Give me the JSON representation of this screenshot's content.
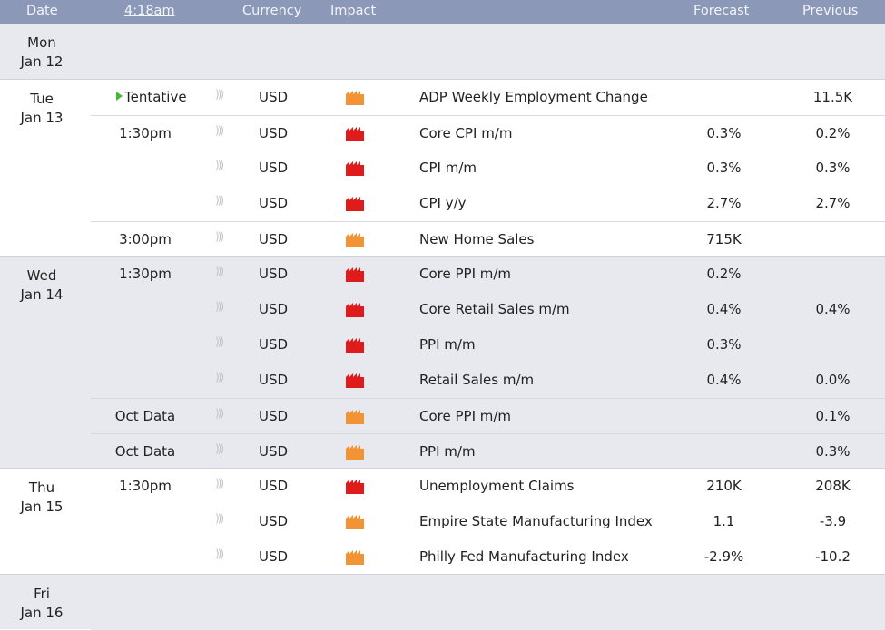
{
  "header": {
    "date": "Date",
    "time": "4:18am",
    "currency": "Currency",
    "impact": "Impact",
    "forecast": "Forecast",
    "previous": "Previous"
  },
  "colors": {
    "high_impact": "#e01b1b",
    "medium_impact": "#f29436",
    "header_bg": "#8c98b8",
    "tentative_icon": "#49b63b"
  },
  "days": [
    {
      "day": "Mon",
      "date": "Jan 12",
      "events": []
    },
    {
      "day": "Tue",
      "date": "Jan 13",
      "events": [
        {
          "time": "Tentative",
          "tentative": true,
          "currency": "USD",
          "impact": "medium",
          "event": "ADP Weekly Employment Change",
          "forecast": "",
          "previous": "11.5K"
        },
        {
          "time": "1:30pm",
          "currency": "USD",
          "impact": "high",
          "event": "Core CPI m/m",
          "forecast": "0.3%",
          "previous": "0.2%"
        },
        {
          "time": "",
          "currency": "USD",
          "impact": "high",
          "event": "CPI m/m",
          "forecast": "0.3%",
          "previous": "0.3%"
        },
        {
          "time": "",
          "currency": "USD",
          "impact": "high",
          "event": "CPI y/y",
          "forecast": "2.7%",
          "previous": "2.7%"
        },
        {
          "time": "3:00pm",
          "currency": "USD",
          "impact": "medium",
          "event": "New Home Sales",
          "forecast": "715K",
          "previous": ""
        }
      ]
    },
    {
      "day": "Wed",
      "date": "Jan 14",
      "events": [
        {
          "time": "1:30pm",
          "currency": "USD",
          "impact": "high",
          "event": "Core PPI m/m",
          "forecast": "0.2%",
          "previous": ""
        },
        {
          "time": "",
          "currency": "USD",
          "impact": "high",
          "event": "Core Retail Sales m/m",
          "forecast": "0.4%",
          "previous": "0.4%"
        },
        {
          "time": "",
          "currency": "USD",
          "impact": "high",
          "event": "PPI m/m",
          "forecast": "0.3%",
          "previous": ""
        },
        {
          "time": "",
          "currency": "USD",
          "impact": "high",
          "event": "Retail Sales m/m",
          "forecast": "0.4%",
          "previous": "0.0%"
        },
        {
          "time": "Oct Data",
          "currency": "USD",
          "impact": "medium",
          "event": "Core PPI m/m",
          "forecast": "",
          "previous": "0.1%"
        },
        {
          "time": "Oct Data",
          "currency": "USD",
          "impact": "medium",
          "event": "PPI m/m",
          "forecast": "",
          "previous": "0.3%"
        }
      ]
    },
    {
      "day": "Thu",
      "date": "Jan 15",
      "events": [
        {
          "time": "1:30pm",
          "currency": "USD",
          "impact": "high",
          "event": "Unemployment Claims",
          "forecast": "210K",
          "previous": "208K"
        },
        {
          "time": "",
          "currency": "USD",
          "impact": "medium",
          "event": "Empire State Manufacturing Index",
          "forecast": "1.1",
          "previous": "-3.9"
        },
        {
          "time": "",
          "currency": "USD",
          "impact": "medium",
          "event": "Philly Fed Manufacturing Index",
          "forecast": "-2.9%",
          "previous": "-10.2"
        }
      ]
    },
    {
      "day": "Fri",
      "date": "Jan 16",
      "events": []
    }
  ]
}
